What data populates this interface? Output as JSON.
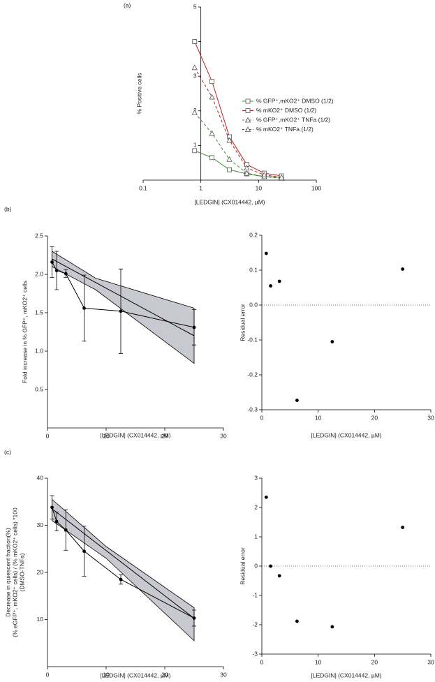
{
  "chart_data": [
    {
      "type": "line",
      "panel": "(a)",
      "xlabel": "[LEDGIN] (CX014442, µM)",
      "ylabel": [
        "% Positive cells"
      ],
      "xscale": "log",
      "xlim": [
        0.1,
        100
      ],
      "xticks": [
        0.1,
        1,
        10,
        100
      ],
      "ylim": [
        0,
        5
      ],
      "yticks": [
        1,
        2,
        3,
        4,
        5
      ],
      "yaxis_crosses_x": 1,
      "x": [
        0.78,
        1.56,
        3.125,
        6.25,
        12.5,
        25
      ],
      "series": [
        {
          "name": "% GFP⁺,mKO2⁺ DMSO (1/2)",
          "color": "#3a8a2e",
          "marker": "square",
          "dash": false,
          "values": [
            0.85,
            0.65,
            0.3,
            0.18,
            0.1,
            0.08
          ]
        },
        {
          "name": "% mKO2⁺ DMSO (1/2)",
          "color": "#b02020",
          "marker": "square",
          "dash": false,
          "values": [
            4.0,
            2.85,
            1.25,
            0.45,
            0.2,
            0.12
          ]
        },
        {
          "name": "% GFP⁺,mKO2⁺ TNFa (1/2)",
          "color": "#3a8a2e",
          "marker": "triangle",
          "dash": true,
          "values": [
            1.95,
            1.35,
            0.6,
            0.2,
            0.1,
            0.05
          ]
        },
        {
          "name": "% mKO2⁺ TNFa (1/2)",
          "color": "#b02020",
          "marker": "triangle",
          "dash": true,
          "values": [
            3.25,
            2.4,
            1.15,
            0.35,
            0.15,
            0.08
          ]
        }
      ]
    },
    {
      "type": "line",
      "panel": "(b)",
      "xlabel": "[LEDGIN] (CX014442, µM)",
      "ylabel": [
        "Fold increase in % GFP⁺, mKO2⁺ cells"
      ],
      "xlim": [
        0,
        30
      ],
      "xticks": [
        0,
        10,
        20,
        30
      ],
      "ylim": [
        0,
        2.5
      ],
      "yticks": [
        0.5,
        {
          "value": 1,
          "label": "1.0"
        },
        1.5,
        {
          "value": 2,
          "label": "2.0"
        },
        2.5
      ],
      "x": [
        0.78,
        1.56,
        3.125,
        6.25,
        12.5,
        25
      ],
      "band": {
        "color": "#c8c8d0",
        "x": [
          0.78,
          8.2,
          25
        ],
        "upper": [
          2.3,
          1.95,
          1.56
        ],
        "lower": [
          2.1,
          1.8,
          0.84
        ]
      },
      "series": [
        {
          "color": "#000000",
          "marker": "circle",
          "dash": false,
          "values": [
            2.16,
            2.05,
            2.01,
            1.56,
            1.52,
            1.31
          ],
          "errors": [
            0.2,
            0.25,
            0.05,
            0.43,
            0.55,
            0.23
          ]
        },
        {
          "color": "#000000",
          "marker": "none",
          "dash": false,
          "x": [
            0.78,
            25
          ],
          "values": [
            2.2,
            1.2
          ]
        }
      ]
    },
    {
      "type": "scatter",
      "xlabel": "[LEDGIN] (CX014442, µM)",
      "ylabel": [
        "Residual error"
      ],
      "xlim": [
        0,
        30
      ],
      "xticks": [
        0,
        10,
        20,
        30
      ],
      "ylim": [
        -0.3,
        0.2
      ],
      "yticks": [
        -0.3,
        -0.2,
        -0.1,
        {
          "value": 0,
          "label": "0.0"
        },
        0.1,
        0.2
      ],
      "hline": 0,
      "x": [
        0.78,
        1.56,
        3.125,
        6.25,
        12.5,
        25
      ],
      "series": [
        {
          "color": "#000000",
          "marker": "circle",
          "values": [
            0.148,
            0.055,
            0.068,
            -0.273,
            -0.105,
            0.103
          ]
        }
      ]
    },
    {
      "type": "line",
      "panel": "(c)",
      "xlabel": "[LEDGIN] (CX014442, µM)",
      "ylabel": [
        "Decrease in quiescent fraction(%)",
        "(% eGFP⁺, mKO2⁺ cells) / (% mKO2⁺ cells) *100",
        "(DMSO-TNFa)"
      ],
      "xlim": [
        0,
        30
      ],
      "xticks": [
        0,
        10,
        20,
        30
      ],
      "ylim": [
        0,
        40
      ],
      "yticks": [
        10,
        20,
        30,
        40
      ],
      "x": [
        0.78,
        1.56,
        3.125,
        6.25,
        12.5,
        25
      ],
      "band": {
        "color": "#c8c8d0",
        "x": [
          0.78,
          10,
          25
        ],
        "upper": [
          35.5,
          25.5,
          12.5
        ],
        "lower": [
          31,
          23,
          5.5
        ]
      },
      "series": [
        {
          "color": "#000000",
          "marker": "circle",
          "dash": false,
          "values": [
            33.8,
            30.8,
            29,
            24.5,
            18.5,
            10.3
          ],
          "errors": [
            2.5,
            2,
            4.3,
            5.3,
            1,
            1.7
          ]
        },
        {
          "color": "#000000",
          "marker": "none",
          "dash": false,
          "x": [
            0.78,
            25
          ],
          "values": [
            33.5,
            10.25
          ]
        }
      ]
    },
    {
      "type": "scatter",
      "xlabel": "[LEDGIN] (CX014442, µM)",
      "ylabel": [
        "Residual error"
      ],
      "xlim": [
        0,
        30
      ],
      "xticks": [
        0,
        10,
        20,
        30
      ],
      "ylim": [
        -3,
        3
      ],
      "yticks": [
        -3,
        -2,
        -1,
        0,
        1,
        2,
        3
      ],
      "hline": 0,
      "x": [
        0.78,
        1.56,
        3.125,
        6.25,
        12.5,
        25
      ],
      "series": [
        {
          "color": "#000000",
          "marker": "circle",
          "values": [
            2.35,
            0,
            -0.33,
            -1.88,
            -2.07,
            1.32
          ]
        }
      ]
    }
  ]
}
